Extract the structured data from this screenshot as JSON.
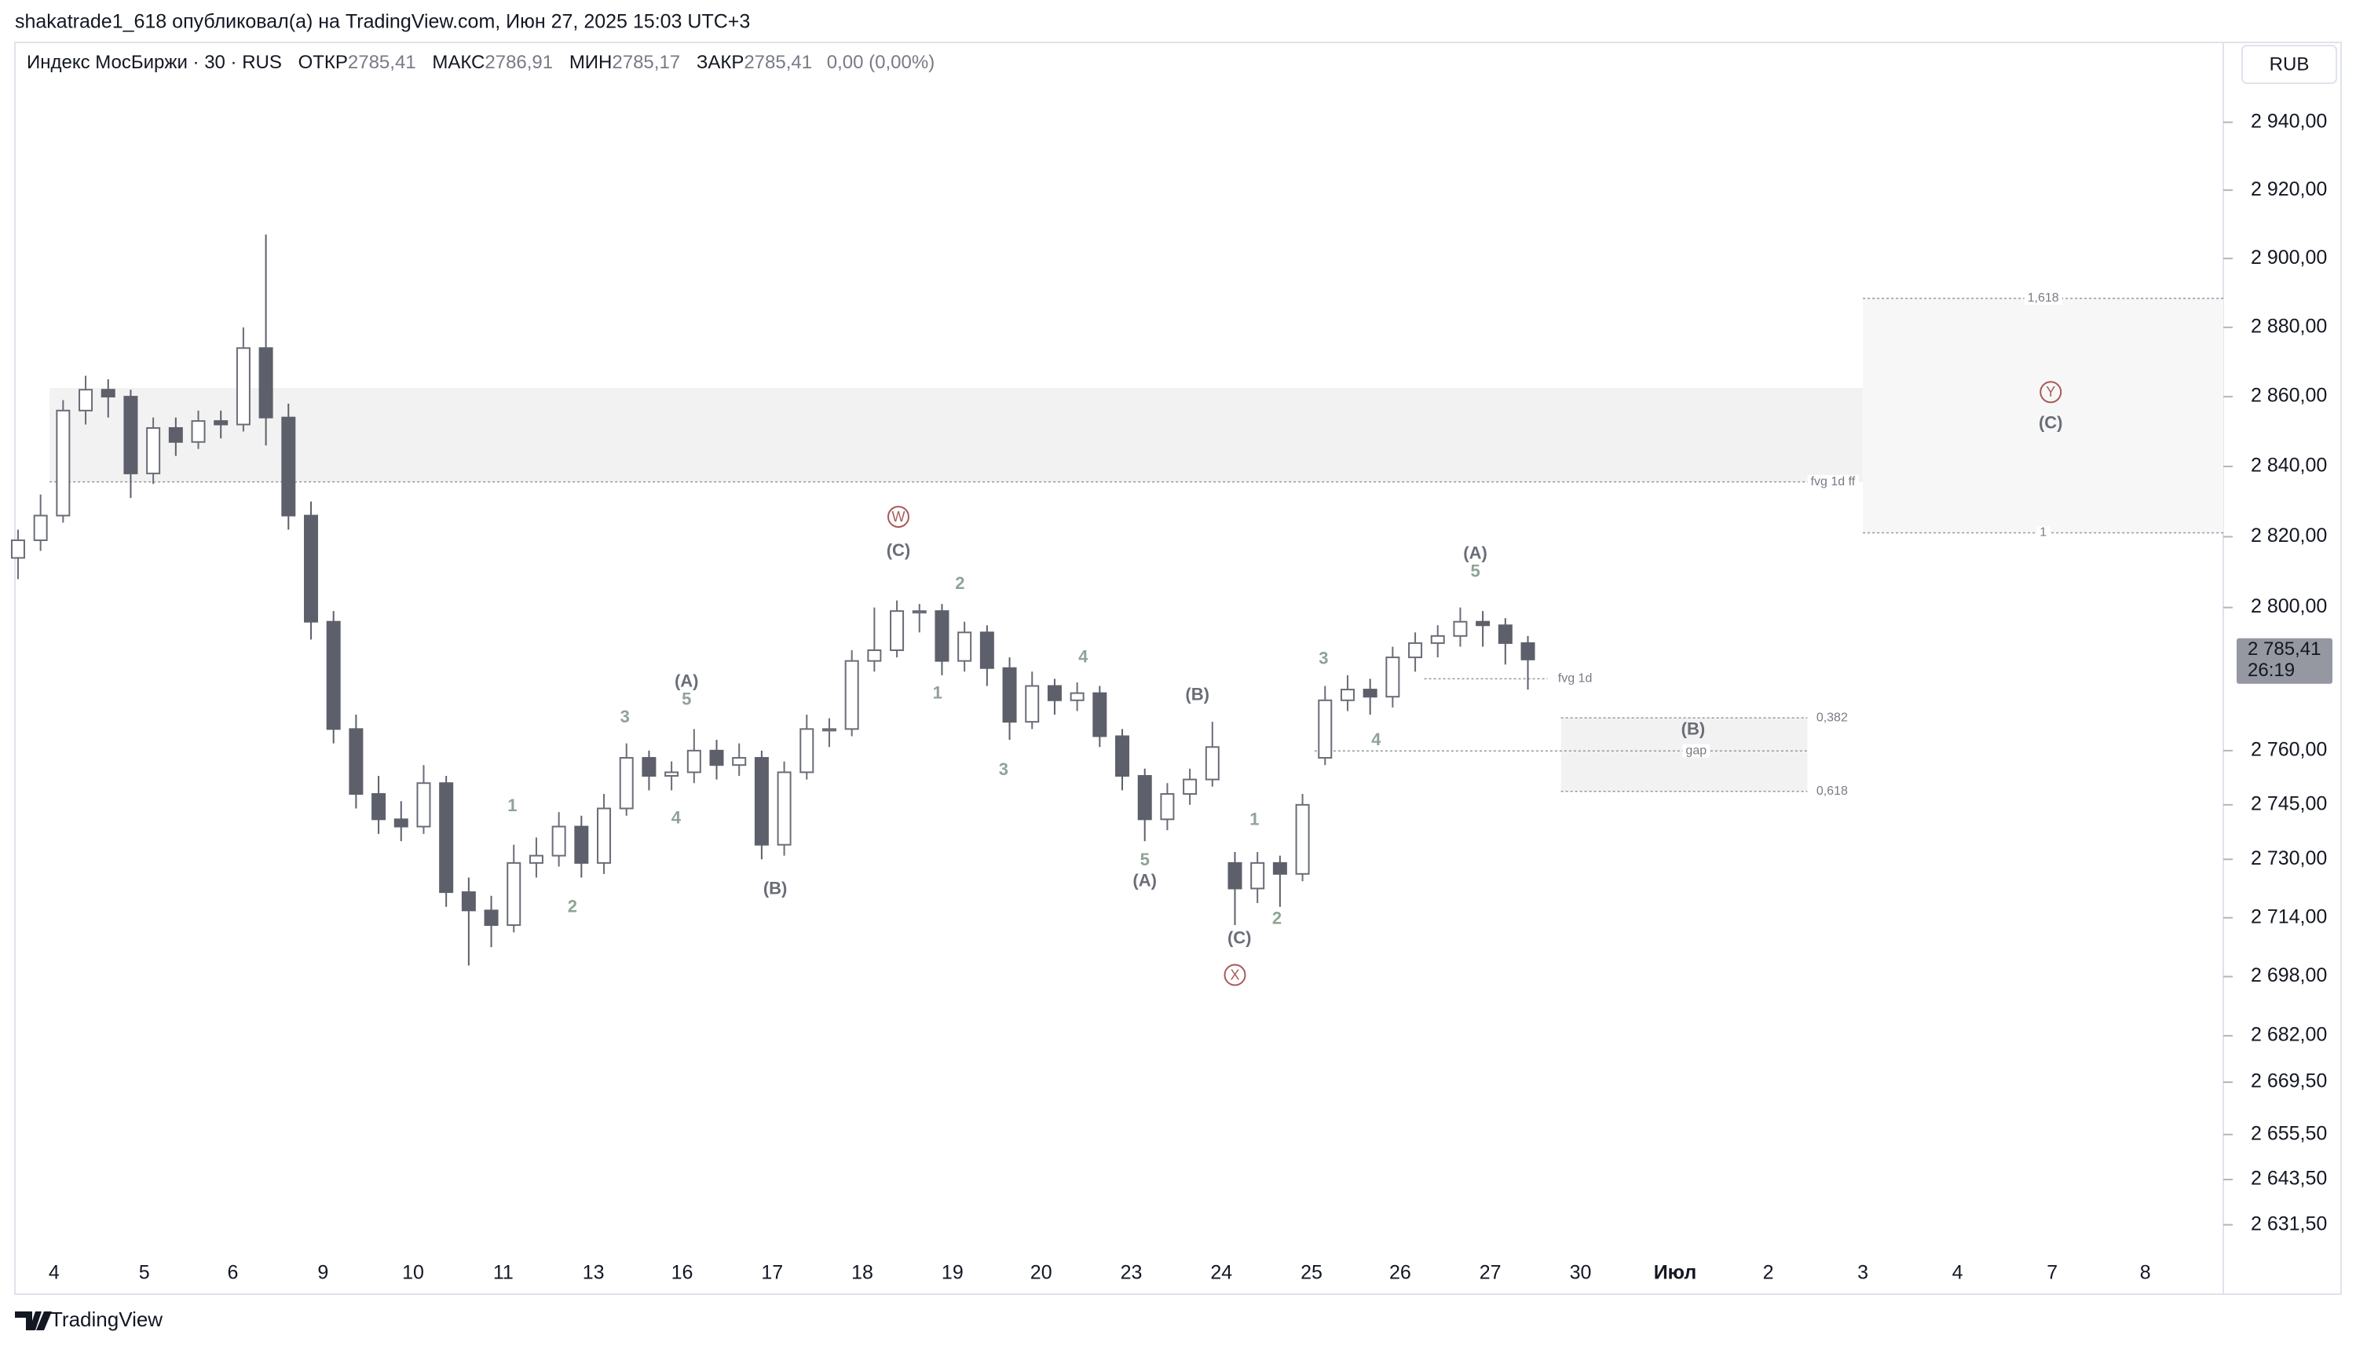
{
  "header": {
    "publisher": "shakatrade1_618 опубликовал(а) на TradingView.com, Июн 27, 2025 15:03 UTC+3"
  },
  "footer": {
    "brand": "TradingView"
  },
  "chart_data": {
    "type": "candlestick",
    "symbol": "Индекс МосБиржи · 30 · RUS",
    "ohlc_legend": [
      {
        "label": "ОТКР",
        "value": "2785,41"
      },
      {
        "label": "МАКС",
        "value": "2786,91"
      },
      {
        "label": "МИН",
        "value": "2785,17"
      },
      {
        "label": "ЗАКР",
        "value": "2785,41"
      }
    ],
    "change": "0,00 (0,00%)",
    "currency": "RUB",
    "last_price": {
      "value": 2785.41,
      "label": "2 785,41",
      "countdown": "26:19"
    },
    "log_scale": true,
    "up_color": "#ffffff",
    "up_border": "#6a6d78",
    "down_color": "#5d606b",
    "categories": [
      "4",
      "5",
      "6",
      "9",
      "10",
      "11",
      "13",
      "16",
      "17",
      "18",
      "19",
      "20",
      "23",
      "24",
      "25",
      "26",
      "27",
      "30",
      "Июл",
      "2",
      "3",
      "4",
      "7",
      "8"
    ],
    "candles": [
      [
        2814,
        2822,
        2808,
        2819
      ],
      [
        2819,
        2832,
        2816,
        2826
      ],
      [
        2826,
        2859,
        2824,
        2856
      ],
      [
        2856,
        2866,
        2852,
        2862
      ],
      [
        2862,
        2865,
        2854,
        2860
      ],
      [
        2860,
        2862,
        2831,
        2838
      ],
      [
        2838,
        2854,
        2835,
        2851
      ],
      [
        2851,
        2854,
        2843,
        2847
      ],
      [
        2847,
        2856,
        2845,
        2853
      ],
      [
        2853,
        2856,
        2848,
        2852
      ],
      [
        2852,
        2880,
        2850,
        2874
      ],
      [
        2874,
        2907,
        2846,
        2854
      ],
      [
        2854,
        2858,
        2822,
        2826
      ],
      [
        2826,
        2830,
        2791,
        2796
      ],
      [
        2796,
        2799,
        2762,
        2766
      ],
      [
        2766,
        2770,
        2744,
        2748
      ],
      [
        2748,
        2753,
        2737,
        2741
      ],
      [
        2741,
        2746,
        2735,
        2739
      ],
      [
        2739,
        2756,
        2737,
        2751
      ],
      [
        2751,
        2753,
        2717,
        2721
      ],
      [
        2721,
        2725,
        2701,
        2716
      ],
      [
        2716,
        2720,
        2706,
        2712
      ],
      [
        2712,
        2734,
        2710,
        2729
      ],
      [
        2729,
        2736,
        2725,
        2731
      ],
      [
        2731,
        2743,
        2728,
        2739
      ],
      [
        2739,
        2742,
        2725,
        2729
      ],
      [
        2729,
        2748,
        2726,
        2744
      ],
      [
        2744,
        2762,
        2742,
        2758
      ],
      [
        2758,
        2760,
        2749,
        2753
      ],
      [
        2753,
        2757,
        2749,
        2754
      ],
      [
        2754,
        2766,
        2751,
        2760
      ],
      [
        2760,
        2763,
        2752,
        2756
      ],
      [
        2756,
        2762,
        2753,
        2758
      ],
      [
        2758,
        2760,
        2730,
        2734
      ],
      [
        2734,
        2757,
        2731,
        2754
      ],
      [
        2754,
        2770,
        2752,
        2766
      ],
      [
        2766,
        2769,
        2761,
        2766
      ],
      [
        2766,
        2788,
        2764,
        2785
      ],
      [
        2785,
        2800,
        2782,
        2788
      ],
      [
        2788,
        2802,
        2786,
        2799
      ],
      [
        2799,
        2801,
        2793,
        2799
      ],
      [
        2799,
        2801,
        2781,
        2785
      ],
      [
        2785,
        2796,
        2782,
        2793
      ],
      [
        2793,
        2795,
        2778,
        2783
      ],
      [
        2783,
        2786,
        2763,
        2768
      ],
      [
        2768,
        2782,
        2766,
        2778
      ],
      [
        2778,
        2780,
        2770,
        2774
      ],
      [
        2774,
        2779,
        2771,
        2776
      ],
      [
        2776,
        2778,
        2761,
        2764
      ],
      [
        2764,
        2766,
        2749,
        2753
      ],
      [
        2753,
        2755,
        2735,
        2741
      ],
      [
        2741,
        2751,
        2738,
        2748
      ],
      [
        2748,
        2755,
        2745,
        2752
      ],
      [
        2752,
        2768,
        2750,
        2761
      ],
      [
        2729,
        2732,
        2712,
        2722
      ],
      [
        2722,
        2732,
        2718,
        2729
      ],
      [
        2729,
        2731,
        2717,
        2726
      ],
      [
        2726,
        2748,
        2724,
        2745
      ],
      [
        2758,
        2778,
        2756,
        2774
      ],
      [
        2774,
        2781,
        2771,
        2777
      ],
      [
        2777,
        2780,
        2770,
        2775
      ],
      [
        2775,
        2789,
        2772,
        2786
      ],
      [
        2786,
        2793,
        2782,
        2790
      ],
      [
        2790,
        2795,
        2786,
        2792
      ],
      [
        2792,
        2800,
        2789,
        2796
      ],
      [
        2796,
        2799,
        2789,
        2795
      ],
      [
        2795,
        2797,
        2784,
        2790
      ],
      [
        2790,
        2792,
        2777,
        2785.41
      ]
    ],
    "ylim": [
      2613,
      2963
    ],
    "yticks": [
      {
        "value": 2940,
        "label": "2 940,00"
      },
      {
        "value": 2920,
        "label": "2 920,00"
      },
      {
        "value": 2900,
        "label": "2 900,00"
      },
      {
        "value": 2880,
        "label": "2 880,00"
      },
      {
        "value": 2860,
        "label": "2 860,00"
      },
      {
        "value": 2840,
        "label": "2 840,00"
      },
      {
        "value": 2820,
        "label": "2 820,00"
      },
      {
        "value": 2800,
        "label": "2 800,00"
      },
      {
        "value": 2760,
        "label": "2 760,00"
      },
      {
        "value": 2745,
        "label": "2 745,00"
      },
      {
        "value": 2730,
        "label": "2 730,00"
      },
      {
        "value": 2714,
        "label": "2 714,00"
      },
      {
        "value": 2698,
        "label": "2 698,00"
      },
      {
        "value": 2682,
        "label": "2 682,00"
      },
      {
        "value": 2669.5,
        "label": "2 669,50"
      },
      {
        "value": 2655.5,
        "label": "2 655,50"
      },
      {
        "value": 2643.5,
        "label": "2 643,50"
      },
      {
        "value": 2631.5,
        "label": "2 631,50"
      }
    ],
    "zones": [
      {
        "ylim": [
          2835.6,
          2862.5
        ]
      },
      {
        "ylim": [
          2821.1,
          2888.4
        ]
      },
      {
        "ylim": [
          2748.7,
          2769.1
        ]
      }
    ],
    "levels": [
      {
        "label": "fvg 1d ff",
        "value": 2835.6
      },
      {
        "label": "fvg 1d",
        "value": 2780
      },
      {
        "label": "gap",
        "value": 2759.9
      },
      {
        "label": "1,618",
        "value": 2888.4
      },
      {
        "label": "1",
        "value": 2821.1
      },
      {
        "label": "0,382",
        "value": 2769.1
      },
      {
        "label": "0,618",
        "value": 2748.7
      }
    ],
    "annotations": [
      {
        "text": "(A)"
      },
      {
        "text": "5"
      },
      {
        "text": "3"
      },
      {
        "text": "1"
      },
      {
        "text": "2"
      },
      {
        "text": "4"
      },
      {
        "text": "(B)"
      },
      {
        "text": "W",
        "circled": true
      },
      {
        "text": "(C)"
      },
      {
        "text": "2"
      },
      {
        "text": "1"
      },
      {
        "text": "3"
      },
      {
        "text": "4"
      },
      {
        "text": "5"
      },
      {
        "text": "(A)"
      },
      {
        "text": "(B)"
      },
      {
        "text": "1"
      },
      {
        "text": "2"
      },
      {
        "text": "(C)"
      },
      {
        "text": "X",
        "circled": true
      },
      {
        "text": "3"
      },
      {
        "text": "4"
      },
      {
        "text": "(A)"
      },
      {
        "text": "5"
      },
      {
        "text": "(B)"
      },
      {
        "text": "Y",
        "circled": true
      },
      {
        "text": "(C)"
      }
    ]
  }
}
